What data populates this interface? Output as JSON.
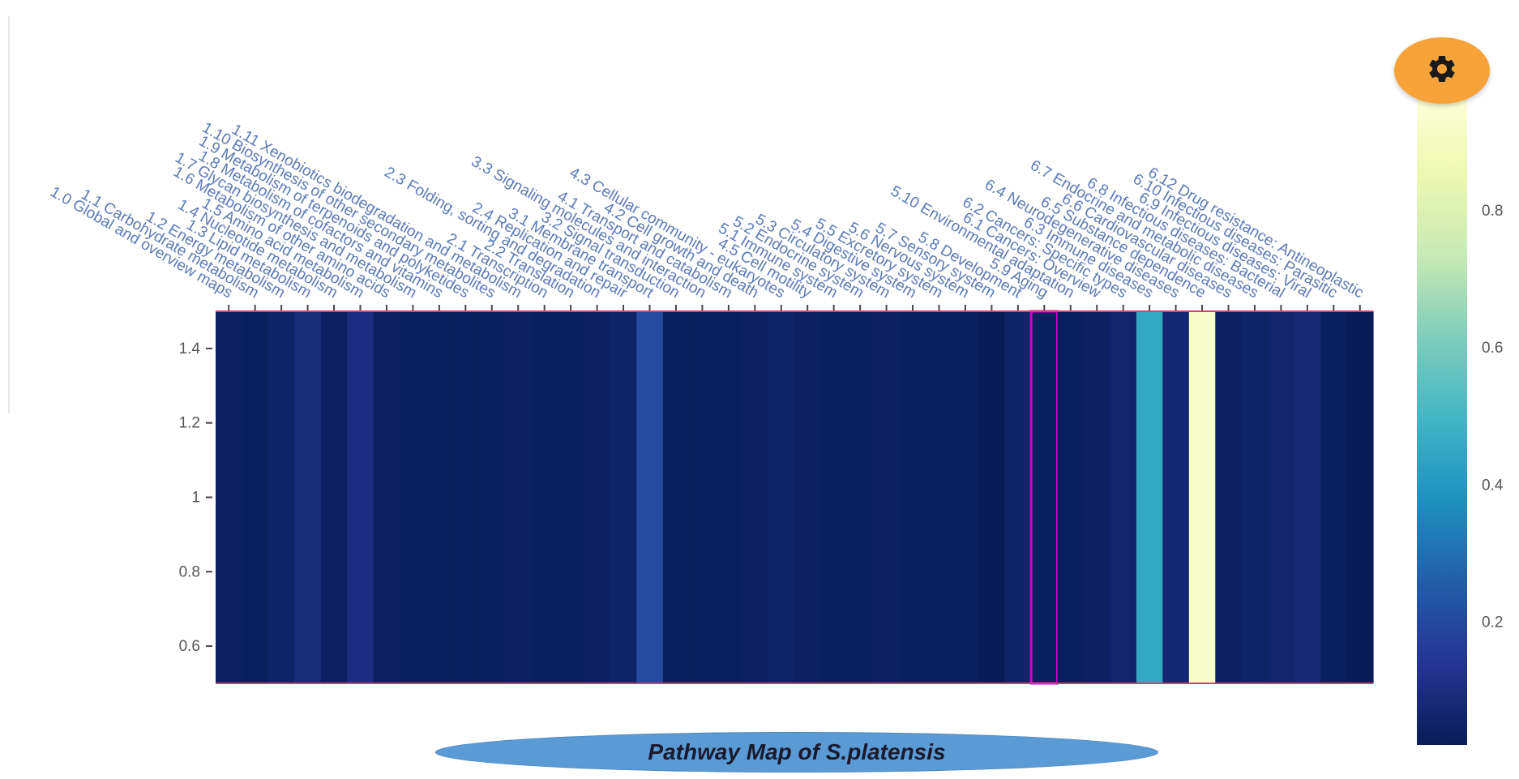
{
  "title": "Pathway Map of S.platensis",
  "settings_icon": "gear-icon",
  "chart_data": {
    "type": "heatmap",
    "title": "Pathway Map of S.platensis",
    "categories": [
      "1.0 Global and overview maps",
      "1.1 Carbohydrate metabolism",
      "1.2 Energy metabolism",
      "1.3 Lipid metabolism",
      "1.4 Nucleotide metabolism",
      "1.5 Amino acid metabolism",
      "1.6 Metabolism of other amino acids",
      "1.7 Glycan biosynthesis and metabolism",
      "1.8 Metabolism of cofactors and vitamins",
      "1.9 Metabolism of terpenoids and polyketides",
      "1.10 Biosynthesis of other secondary metabolites",
      "1.11 Xenobiotics biodegradation and metabolism",
      "2.1 Transcription",
      "2.2 Translation",
      "2.3 Folding, sorting and degradation",
      "2.4 Replication and repair",
      "3.1 Membrane transport",
      "3.2 Signal transduction",
      "3.3 Signaling molecules and interaction",
      "4.1 Transport and catabolism",
      "4.2 Cell growth and death",
      "4.3 Cellular community - eukaryotes",
      "4.5 Cell motility",
      "5.1 Immune system",
      "5.2 Endocrine system",
      "5.3 Circulatory system",
      "5.4 Digestive system",
      "5.5 Excretory system",
      "5.6 Nervous system",
      "5.7 Sensory system",
      "5.8 Development",
      "5.9 Aging",
      "5.10 Environmental adaptation",
      "6.1 Cancers: Overview",
      "6.2 Cancers: Specific types",
      "6.3 Immune diseases",
      "6.4 Neurodegenerative diseases",
      "6.5 Substance dependence",
      "6.6 Cardiovascular diseases",
      "6.7 Endocrine and metabolic diseases",
      "6.8 Infectious diseases: Bacterial",
      "6.9 Infectious diseases: Viral",
      "6.10 Infectious diseases: Parasitic",
      "6.12 Drug resistance: Antineoplastic"
    ],
    "values": [
      0.04,
      0.03,
      0.05,
      0.09,
      0.04,
      0.1,
      0.04,
      0.03,
      0.03,
      0.03,
      0.03,
      0.04,
      0.03,
      0.03,
      0.04,
      0.05,
      0.2,
      0.03,
      0.03,
      0.03,
      0.04,
      0.05,
      0.04,
      0.03,
      0.03,
      0.04,
      0.03,
      0.03,
      0.03,
      0.02,
      0.05,
      0.03,
      0.03,
      0.04,
      0.06,
      0.45,
      0.07,
      0.92,
      0.04,
      0.05,
      0.06,
      0.08,
      0.03,
      0.02
    ],
    "highlighted": [
      "5.9 Aging"
    ],
    "y_range": [
      0.5,
      1.5
    ],
    "y_ticks": [
      "0.6",
      "0.8",
      "1",
      "1.2",
      "1.4"
    ],
    "colorbar": {
      "range": [
        0.02,
        0.97
      ],
      "ticks": [
        "0.2",
        "0.4",
        "0.6",
        "0.8"
      ],
      "colorscale": [
        "#081d58",
        "#253494",
        "#225ea8",
        "#1d91c0",
        "#41b6c4",
        "#7fcdbb",
        "#c7e9b4",
        "#edf8b1",
        "#ffffd9"
      ]
    },
    "grid": false
  }
}
